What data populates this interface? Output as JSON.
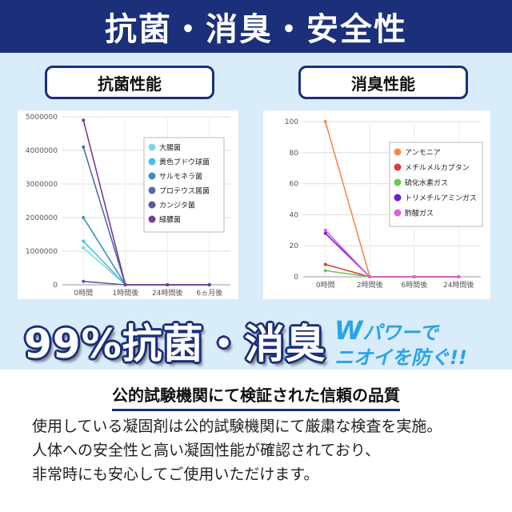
{
  "header": {
    "title": "抗菌・消臭・安全性"
  },
  "pills": {
    "left": "抗菌性能",
    "right": "消臭性能"
  },
  "banner": {
    "main": "99%抗菌・消臭",
    "power_line1_w": "W",
    "power_line1_rest": "パワーで",
    "power_line2": "ニオイを防ぐ!!"
  },
  "subheading": "公的試験機関にて検証された信頼の品質",
  "body": [
    "使用している凝固剤は公的試験機関にて厳粛な検査を実施。",
    "人体への安全性と高い凝固性能が確認されており、",
    "非常時にも安心してご使用いただけます。"
  ],
  "chart_data": [
    {
      "type": "line",
      "title": "",
      "categories": [
        "0時間",
        "1時間後",
        "24時間後",
        "6ヵ月後"
      ],
      "ylim": [
        0,
        5000000
      ],
      "yticks": [
        0,
        1000000,
        2000000,
        3000000,
        4000000,
        5000000
      ],
      "ytick_labels": [
        "0",
        "1000000",
        "2000000",
        "3000000",
        "4000000",
        "5000000"
      ],
      "legend_position": "right",
      "grid": true,
      "series": [
        {
          "name": "大腸菌",
          "color": "#7fd6e8",
          "values": [
            1100000,
            0,
            0,
            0
          ]
        },
        {
          "name": "黄色ブドウ球菌",
          "color": "#4cbfdf",
          "values": [
            1300000,
            0,
            0,
            0
          ]
        },
        {
          "name": "サルモネラ菌",
          "color": "#3a8fc2",
          "values": [
            2000000,
            0,
            0,
            0
          ]
        },
        {
          "name": "プロテウス属菌",
          "color": "#4f6aae",
          "values": [
            4100000,
            0,
            0,
            0
          ]
        },
        {
          "name": "カンジタ菌",
          "color": "#5b5aa0",
          "values": [
            100000,
            0,
            0,
            0
          ]
        },
        {
          "name": "緑膿菌",
          "color": "#7a3a95",
          "values": [
            4900000,
            0,
            0,
            0
          ]
        }
      ]
    },
    {
      "type": "line",
      "title": "",
      "categories": [
        "0時間",
        "2時間後",
        "6時間後",
        "24時間後"
      ],
      "ylim": [
        0,
        100
      ],
      "yticks": [
        0,
        20,
        40,
        60,
        80,
        100
      ],
      "ytick_labels": [
        "0",
        "20",
        "40",
        "60",
        "80",
        "100"
      ],
      "legend_position": "right",
      "grid": true,
      "series": [
        {
          "name": "アンモニア",
          "color": "#f28a4a",
          "values": [
            100,
            0,
            0,
            0
          ]
        },
        {
          "name": "メチルメルカプタン",
          "color": "#e03a3a",
          "values": [
            8,
            0,
            0,
            0
          ]
        },
        {
          "name": "硫化水素ガス",
          "color": "#6cc94c",
          "values": [
            4,
            0,
            0,
            0
          ]
        },
        {
          "name": "トリメチルアミンガス",
          "color": "#6a1fd6",
          "values": [
            28,
            0,
            0,
            0
          ]
        },
        {
          "name": "酢酸ガス",
          "color": "#e85fd6",
          "values": [
            30,
            0,
            0,
            0
          ]
        }
      ]
    }
  ]
}
